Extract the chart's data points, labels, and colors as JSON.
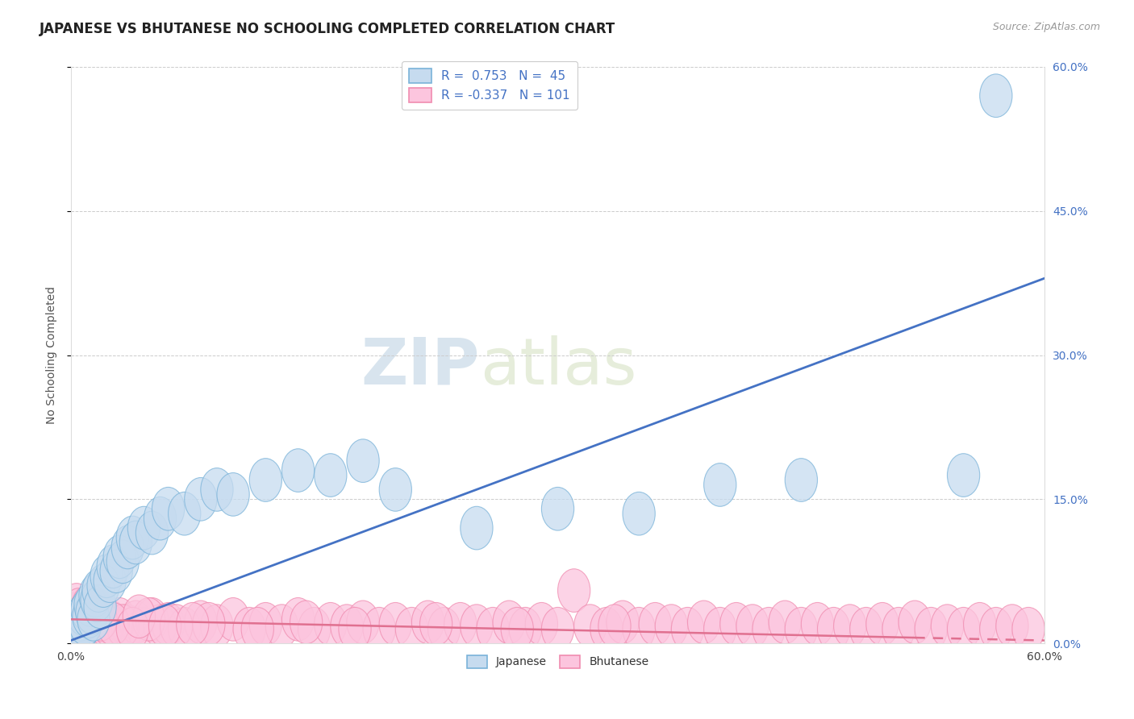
{
  "title": "JAPANESE VS BHUTANESE NO SCHOOLING COMPLETED CORRELATION CHART",
  "source": "Source: ZipAtlas.com",
  "ylabel": "No Schooling Completed",
  "yticks_right": [
    "0.0%",
    "15.0%",
    "30.0%",
    "45.0%",
    "60.0%"
  ],
  "ytick_vals": [
    0.0,
    15.0,
    30.0,
    45.0,
    60.0
  ],
  "xlim": [
    0.0,
    60.0
  ],
  "ylim": [
    0.0,
    60.0
  ],
  "blue_color": "#7ab3d9",
  "blue_fill": "#c6dbef",
  "pink_color": "#f08cb0",
  "pink_fill": "#fcc5de",
  "blue_line_color": "#4472c4",
  "pink_line_color": "#e07090",
  "watermark_zip": "ZIP",
  "watermark_atlas": "atlas",
  "title_fontsize": 12,
  "axis_label_fontsize": 10,
  "tick_fontsize": 10,
  "blue_line_x0": 0.0,
  "blue_line_y0": 0.3,
  "blue_line_x1": 60.0,
  "blue_line_y1": 38.0,
  "pink_line_x0": 0.0,
  "pink_line_y0": 2.5,
  "pink_line_x1": 60.0,
  "pink_line_y1": 0.3,
  "japanese_points": [
    [
      0.3,
      1.2
    ],
    [
      0.5,
      1.8
    ],
    [
      0.6,
      2.5
    ],
    [
      0.7,
      1.5
    ],
    [
      0.8,
      3.0
    ],
    [
      0.9,
      2.0
    ],
    [
      1.0,
      3.5
    ],
    [
      1.1,
      2.8
    ],
    [
      1.2,
      4.0
    ],
    [
      1.3,
      3.2
    ],
    [
      1.4,
      2.5
    ],
    [
      1.5,
      5.0
    ],
    [
      1.6,
      4.5
    ],
    [
      1.7,
      5.5
    ],
    [
      1.8,
      3.8
    ],
    [
      2.0,
      6.0
    ],
    [
      2.2,
      7.0
    ],
    [
      2.4,
      6.5
    ],
    [
      2.6,
      8.0
    ],
    [
      2.8,
      7.5
    ],
    [
      3.0,
      9.0
    ],
    [
      3.2,
      8.5
    ],
    [
      3.5,
      10.0
    ],
    [
      3.8,
      11.0
    ],
    [
      4.0,
      10.5
    ],
    [
      4.5,
      12.0
    ],
    [
      5.0,
      11.5
    ],
    [
      5.5,
      13.0
    ],
    [
      6.0,
      14.0
    ],
    [
      7.0,
      13.5
    ],
    [
      8.0,
      15.0
    ],
    [
      9.0,
      16.0
    ],
    [
      10.0,
      15.5
    ],
    [
      12.0,
      17.0
    ],
    [
      14.0,
      18.0
    ],
    [
      16.0,
      17.5
    ],
    [
      18.0,
      19.0
    ],
    [
      20.0,
      16.0
    ],
    [
      25.0,
      12.0
    ],
    [
      30.0,
      14.0
    ],
    [
      35.0,
      13.5
    ],
    [
      40.0,
      16.5
    ],
    [
      45.0,
      17.0
    ],
    [
      55.0,
      17.5
    ],
    [
      57.0,
      57.0
    ]
  ],
  "bhutanese_points": [
    [
      0.1,
      1.5
    ],
    [
      0.15,
      3.0
    ],
    [
      0.2,
      1.0
    ],
    [
      0.25,
      2.5
    ],
    [
      0.3,
      1.8
    ],
    [
      0.35,
      4.0
    ],
    [
      0.4,
      2.0
    ],
    [
      0.45,
      1.2
    ],
    [
      0.5,
      3.5
    ],
    [
      0.6,
      2.2
    ],
    [
      0.7,
      1.5
    ],
    [
      0.8,
      2.8
    ],
    [
      0.9,
      1.8
    ],
    [
      1.0,
      3.2
    ],
    [
      1.1,
      2.0
    ],
    [
      1.2,
      1.5
    ],
    [
      1.3,
      2.5
    ],
    [
      1.4,
      1.8
    ],
    [
      1.5,
      3.0
    ],
    [
      1.7,
      2.2
    ],
    [
      1.9,
      1.5
    ],
    [
      2.0,
      2.8
    ],
    [
      2.2,
      1.8
    ],
    [
      2.5,
      2.2
    ],
    [
      2.8,
      1.5
    ],
    [
      3.0,
      2.5
    ],
    [
      3.5,
      1.8
    ],
    [
      4.0,
      2.2
    ],
    [
      4.5,
      1.5
    ],
    [
      5.0,
      2.5
    ],
    [
      5.5,
      1.8
    ],
    [
      6.0,
      2.0
    ],
    [
      7.0,
      1.5
    ],
    [
      8.0,
      2.2
    ],
    [
      9.0,
      1.8
    ],
    [
      10.0,
      2.5
    ],
    [
      11.0,
      1.5
    ],
    [
      12.0,
      2.0
    ],
    [
      13.0,
      1.8
    ],
    [
      14.0,
      2.5
    ],
    [
      15.0,
      1.5
    ],
    [
      16.0,
      2.0
    ],
    [
      17.0,
      1.8
    ],
    [
      18.0,
      2.2
    ],
    [
      19.0,
      1.5
    ],
    [
      20.0,
      2.0
    ],
    [
      21.0,
      1.5
    ],
    [
      22.0,
      2.2
    ],
    [
      23.0,
      1.5
    ],
    [
      24.0,
      2.0
    ],
    [
      25.0,
      1.8
    ],
    [
      26.0,
      1.5
    ],
    [
      27.0,
      2.2
    ],
    [
      28.0,
      1.5
    ],
    [
      29.0,
      2.0
    ],
    [
      30.0,
      1.5
    ],
    [
      31.0,
      5.5
    ],
    [
      32.0,
      1.8
    ],
    [
      33.0,
      1.5
    ],
    [
      34.0,
      2.2
    ],
    [
      35.0,
      1.5
    ],
    [
      36.0,
      2.0
    ],
    [
      37.0,
      1.8
    ],
    [
      38.0,
      1.5
    ],
    [
      39.0,
      2.2
    ],
    [
      40.0,
      1.5
    ],
    [
      41.0,
      2.0
    ],
    [
      42.0,
      1.8
    ],
    [
      43.0,
      1.5
    ],
    [
      44.0,
      2.2
    ],
    [
      45.0,
      1.5
    ],
    [
      46.0,
      2.0
    ],
    [
      47.0,
      1.5
    ],
    [
      48.0,
      1.8
    ],
    [
      49.0,
      1.5
    ],
    [
      50.0,
      2.0
    ],
    [
      51.0,
      1.5
    ],
    [
      52.0,
      2.2
    ],
    [
      53.0,
      1.5
    ],
    [
      54.0,
      1.8
    ],
    [
      55.0,
      1.5
    ],
    [
      56.0,
      2.0
    ],
    [
      57.0,
      1.5
    ],
    [
      58.0,
      1.8
    ],
    [
      59.0,
      1.5
    ],
    [
      0.55,
      2.5
    ],
    [
      1.6,
      3.5
    ],
    [
      2.3,
      2.0
    ],
    [
      3.2,
      1.8
    ],
    [
      4.8,
      2.5
    ],
    [
      6.5,
      1.8
    ],
    [
      8.5,
      2.0
    ],
    [
      11.5,
      1.5
    ],
    [
      14.5,
      2.2
    ],
    [
      17.5,
      1.5
    ],
    [
      22.5,
      2.0
    ],
    [
      27.5,
      1.5
    ],
    [
      33.5,
      1.8
    ],
    [
      0.22,
      1.5
    ],
    [
      0.65,
      2.8
    ],
    [
      1.05,
      3.8
    ],
    [
      1.85,
      2.5
    ],
    [
      2.6,
      2.0
    ],
    [
      3.8,
      1.5
    ],
    [
      4.2,
      2.8
    ],
    [
      5.8,
      1.8
    ],
    [
      7.5,
      2.0
    ]
  ]
}
